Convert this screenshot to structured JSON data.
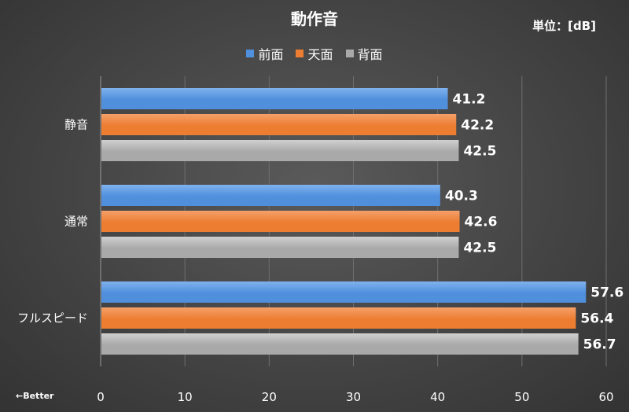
{
  "header": {
    "title": "動作音",
    "unit": "単位：[dB]"
  },
  "note": "←Better",
  "colors": {
    "front": "#4f8fdc",
    "top": "#ed7d31",
    "back": "#a9a9a9",
    "grid": "#6e6e6e"
  },
  "chart_data": {
    "type": "bar",
    "orientation": "horizontal",
    "title": "動作音",
    "unit_label": "単位：[dB]",
    "categories": [
      "静音",
      "通常",
      "フルスピード"
    ],
    "series": [
      {
        "name": "前面",
        "values": [
          41.2,
          40.3,
          57.6
        ]
      },
      {
        "name": "天面",
        "values": [
          42.2,
          42.6,
          56.4
        ]
      },
      {
        "name": "背面",
        "values": [
          42.5,
          42.5,
          56.7
        ]
      }
    ],
    "xlim": [
      0,
      60
    ],
    "xticks": [
      0,
      10,
      20,
      30,
      40,
      50,
      60
    ],
    "grid": true,
    "legend_position": "top",
    "data_labels": true
  }
}
